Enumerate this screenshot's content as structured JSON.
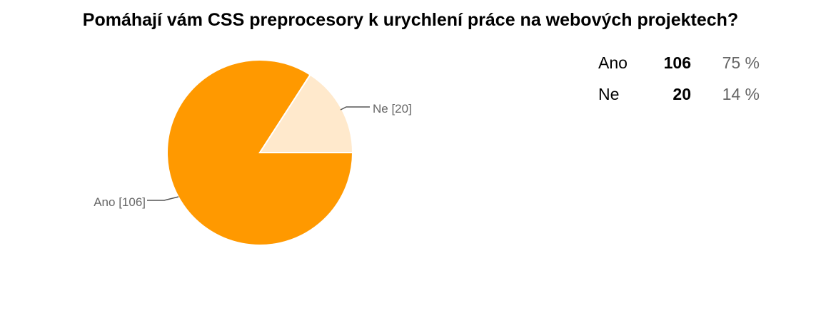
{
  "chart_data": {
    "type": "pie",
    "title": "Pomáhají vám CSS preprocesory k urychlení práce na webových projektech?",
    "slices": [
      {
        "label": "Ano",
        "value": 106,
        "percent": "75 %",
        "slice_label": "Ano [106]",
        "color": "#ff9900"
      },
      {
        "label": "Ne",
        "value": 20,
        "percent": "14 %",
        "slice_label": "Ne [20]",
        "color": "#ffe9cc"
      }
    ],
    "legend_placement": "right"
  }
}
